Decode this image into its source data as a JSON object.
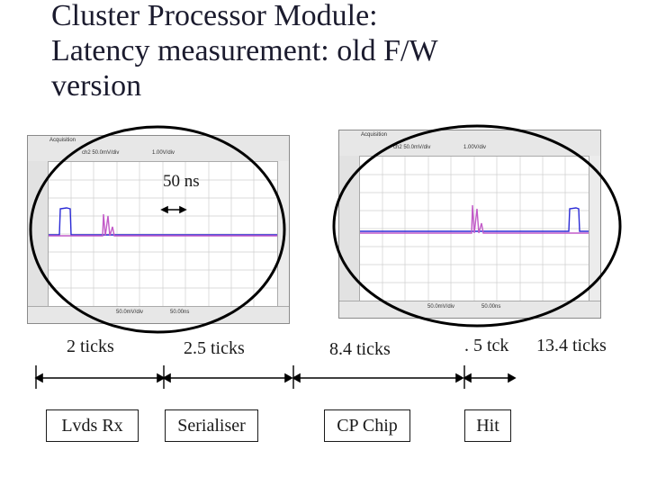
{
  "slide": {
    "title_lines": [
      "Cluster Processor Module:",
      "Latency measurement: old F/W",
      "version"
    ]
  },
  "scope_left": {
    "top_text_1": "Acquisition",
    "top_text_2": "ch2 50.0mV/div",
    "top_text_3": "1.00V/div",
    "bottom_ch": "50.0mV/div",
    "bottom_time": "50.00ns"
  },
  "scope_right": {
    "top_text_1": "Acquisition",
    "top_text_2": "ch2 50.0mV/div",
    "top_text_3": "1.00V/div",
    "bottom_ch": "50.0mV/div",
    "bottom_time": "50.00ns"
  },
  "annotation": {
    "scale_label": "50 ns"
  },
  "timing": {
    "labels": [
      "2 ticks",
      "2.5 ticks",
      "8.4 ticks",
      ". 5 tck",
      "13.4 ticks"
    ]
  },
  "chain": {
    "boxes": [
      "Lvds Rx",
      "Serialiser",
      "CP Chip",
      "Hit"
    ]
  },
  "colors": {
    "trace_blue": "#2b2bd6",
    "trace_purple": "#c25ac8",
    "grid": "#c8c8c8",
    "annotation": "#000000"
  }
}
